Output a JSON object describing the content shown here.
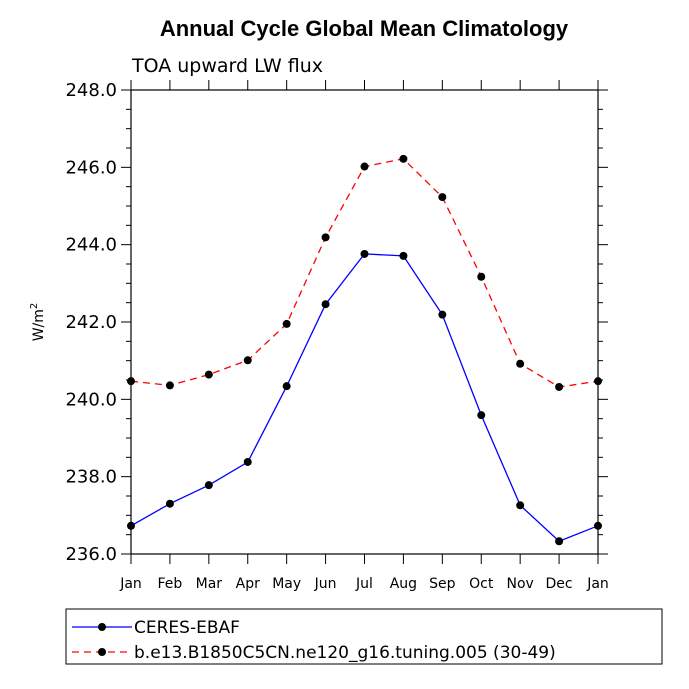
{
  "chart_data": {
    "type": "line",
    "title": "Annual Cycle Global Mean Climatology",
    "subtitle": "TOA upward LW flux",
    "ylabel": "W/m",
    "ylabel_sup": "2",
    "ylim": [
      236.0,
      248.0
    ],
    "yticks": [
      "236.0",
      "238.0",
      "240.0",
      "242.0",
      "244.0",
      "246.0",
      "248.0"
    ],
    "ytick_values": [
      236,
      238,
      240,
      242,
      244,
      246,
      248
    ],
    "categories": [
      "Jan",
      "Feb",
      "Mar",
      "Apr",
      "May",
      "Jun",
      "Jul",
      "Aug",
      "Sep",
      "Oct",
      "Nov",
      "Dec",
      "Jan"
    ],
    "grid": false,
    "legend_position": "bottom",
    "series": [
      {
        "name": "CERES-EBAF",
        "color": "#0000ff",
        "dashed": false,
        "values": [
          236.73,
          237.3,
          237.78,
          238.38,
          240.34,
          242.46,
          243.76,
          243.71,
          242.19,
          239.59,
          237.26,
          236.33,
          236.73
        ]
      },
      {
        "name": "b.e13.B1850C5CN.ne120_g16.tuning.005 (30-49)",
        "color": "#ff0000",
        "dashed": true,
        "values": [
          240.47,
          240.36,
          240.64,
          241.01,
          241.95,
          244.19,
          246.02,
          246.22,
          245.23,
          243.17,
          240.92,
          240.32,
          240.47
        ]
      }
    ]
  }
}
